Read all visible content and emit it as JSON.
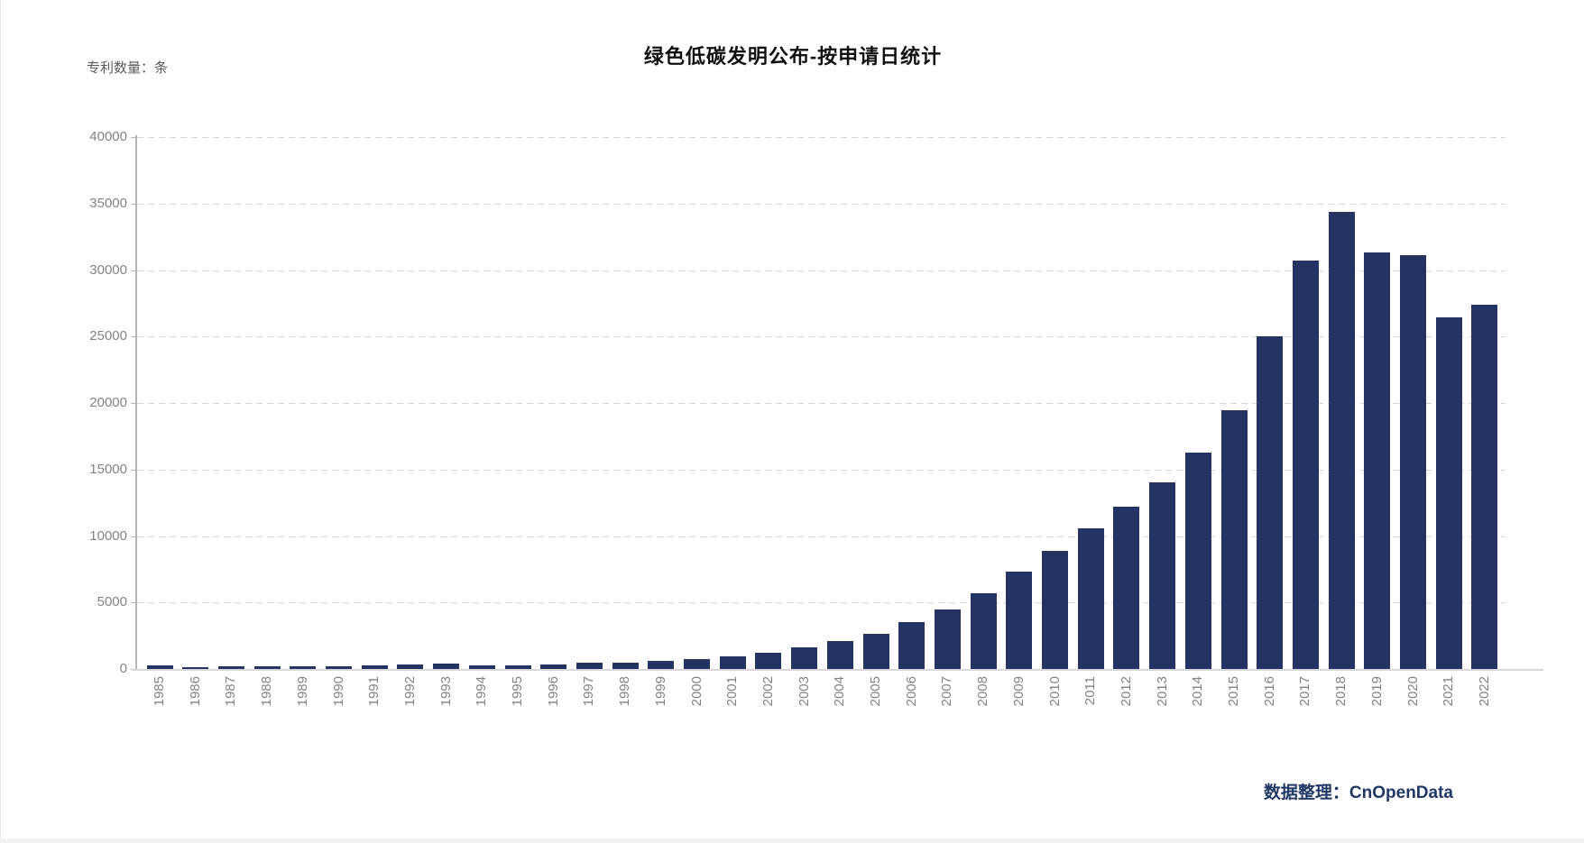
{
  "page": {
    "unit_label": "专利数量：条",
    "footer": "数据整理：CnOpenData"
  },
  "colors": {
    "bar": "#253264",
    "footer_text": "#203864",
    "axis_label": "#828282",
    "gridline": "#d4d4d4",
    "background": "#ffffff"
  },
  "chart_data": {
    "type": "bar",
    "title": "绿色低碳发明公布-按申请日统计",
    "ylabel": "专利数量：条",
    "xlabel": "",
    "legend": null,
    "grid": "horizontal-dashed",
    "ylim": [
      0,
      40000
    ],
    "ytick_interval": 5000,
    "yticks": [
      "0",
      "5000",
      "10000",
      "15000",
      "20000",
      "25000",
      "30000",
      "35000",
      "40000"
    ],
    "categories": [
      "1985",
      "1986",
      "1987",
      "1988",
      "1989",
      "1990",
      "1991",
      "1992",
      "1993",
      "1994",
      "1995",
      "1996",
      "1997",
      "1998",
      "1999",
      "2000",
      "2001",
      "2002",
      "2003",
      "2004",
      "2005",
      "2006",
      "2007",
      "2008",
      "2009",
      "2010",
      "2011",
      "2012",
      "2013",
      "2014",
      "2015",
      "2016",
      "2017",
      "2018",
      "2019",
      "2020",
      "2021",
      "2022"
    ],
    "values": [
      250,
      110,
      210,
      220,
      210,
      220,
      260,
      310,
      380,
      280,
      300,
      360,
      450,
      500,
      590,
      740,
      930,
      1250,
      1650,
      2100,
      2650,
      3500,
      4450,
      5700,
      7300,
      8850,
      10550,
      12200,
      14000,
      16250,
      19450,
      25050,
      30700,
      34400,
      31350,
      31150,
      26450,
      27400
    ],
    "bar_color": "#253264",
    "source_note": "数据整理：CnOpenData"
  }
}
